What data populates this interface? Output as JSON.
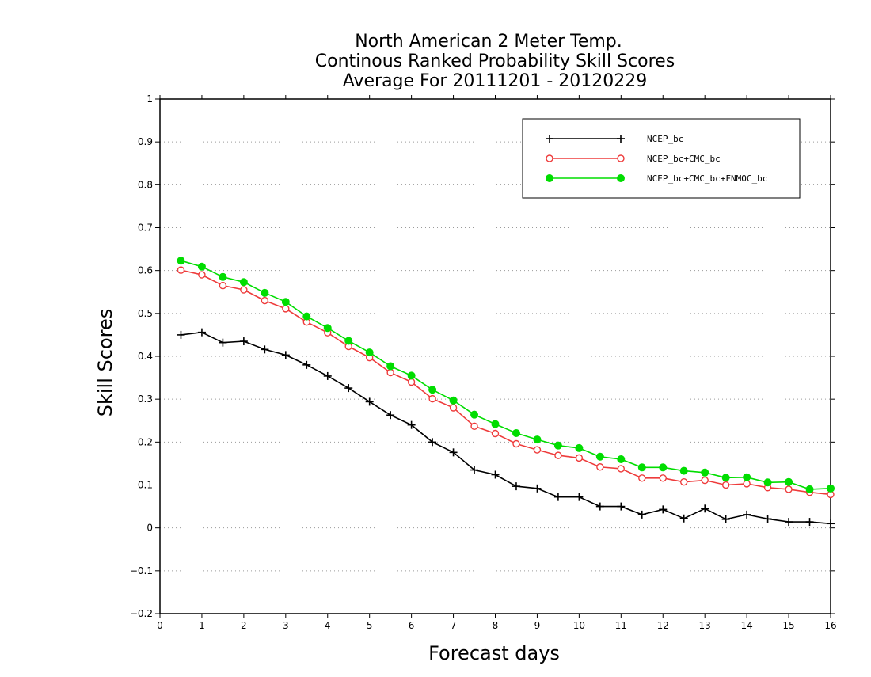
{
  "chart_data": {
    "type": "line",
    "title_lines": [
      "North American 2 Meter Temp.",
      "Continous Ranked Probability Skill Scores",
      "Average For 20111201 - 20120229"
    ],
    "xlabel": "Forecast days",
    "ylabel": "Skill Scores",
    "xlim": [
      0,
      16
    ],
    "ylim": [
      -0.2,
      1
    ],
    "x_ticks": [
      0,
      1,
      2,
      3,
      4,
      5,
      6,
      7,
      8,
      9,
      10,
      11,
      12,
      13,
      14,
      15,
      16
    ],
    "y_ticks": [
      -0.2,
      -0.1,
      0,
      0.1,
      0.2,
      0.3,
      0.4,
      0.5,
      0.6,
      0.7,
      0.8,
      0.9,
      1
    ],
    "y_tick_labels": [
      "−0.2",
      "−0.1",
      "0",
      "0.1",
      "0.2",
      "0.3",
      "0.4",
      "0.5",
      "0.6",
      "0.7",
      "0.8",
      "0.9",
      "1"
    ],
    "grid": "horizontal-dotted",
    "legend_position": "top-right",
    "x": [
      0.5,
      1,
      1.5,
      2,
      2.5,
      3,
      3.5,
      4,
      4.5,
      5,
      5.5,
      6,
      6.5,
      7,
      7.5,
      8,
      8.5,
      9,
      9.5,
      10,
      10.5,
      11,
      11.5,
      12,
      12.5,
      13,
      13.5,
      14,
      14.5,
      15,
      15.5,
      16
    ],
    "series": [
      {
        "name": "NCEP_bc",
        "color": "#000000",
        "marker": "plus",
        "values": [
          0.45,
          0.456,
          0.432,
          0.435,
          0.416,
          0.403,
          0.38,
          0.354,
          0.326,
          0.294,
          0.263,
          0.24,
          0.2,
          0.176,
          0.135,
          0.124,
          0.097,
          0.092,
          0.072,
          0.072,
          0.05,
          0.05,
          0.031,
          0.043,
          0.022,
          0.045,
          0.02,
          0.031,
          0.021,
          0.014,
          0.014,
          0.01
        ]
      },
      {
        "name": "NCEP_bc+CMC_bc",
        "color": "#ee3b3b",
        "marker": "open-circle",
        "values": [
          0.601,
          0.59,
          0.565,
          0.555,
          0.53,
          0.511,
          0.48,
          0.455,
          0.423,
          0.397,
          0.362,
          0.34,
          0.301,
          0.28,
          0.237,
          0.22,
          0.196,
          0.182,
          0.169,
          0.163,
          0.142,
          0.138,
          0.116,
          0.116,
          0.107,
          0.111,
          0.1,
          0.103,
          0.094,
          0.09,
          0.083,
          0.078
        ]
      },
      {
        "name": "NCEP_bc+CMC_bc+FNMOC_bc",
        "color": "#00dd00",
        "marker": "filled-circle",
        "values": [
          0.623,
          0.609,
          0.585,
          0.573,
          0.548,
          0.527,
          0.493,
          0.466,
          0.436,
          0.409,
          0.377,
          0.355,
          0.322,
          0.297,
          0.264,
          0.242,
          0.221,
          0.206,
          0.192,
          0.186,
          0.166,
          0.16,
          0.141,
          0.141,
          0.133,
          0.129,
          0.117,
          0.118,
          0.106,
          0.107,
          0.09,
          0.092
        ]
      }
    ]
  }
}
